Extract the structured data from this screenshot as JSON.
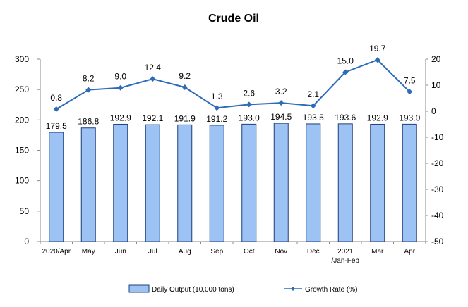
{
  "chart_data": {
    "type": "bar",
    "title": "Crude Oil",
    "categories": [
      [
        "2020/Apr"
      ],
      [
        "May"
      ],
      [
        "Jun"
      ],
      [
        "Jul"
      ],
      [
        "Aug"
      ],
      [
        "Sep"
      ],
      [
        "Oct"
      ],
      [
        "Nov"
      ],
      [
        "Dec"
      ],
      [
        "2021",
        "/Jan-Feb"
      ],
      [
        "Mar"
      ],
      [
        "Apr"
      ]
    ],
    "series": [
      {
        "name": "Daily Output (10,000 tons)",
        "type": "bar",
        "axis": "left",
        "color": "#9dc3f5",
        "values": [
          179.5,
          186.8,
          192.9,
          192.1,
          191.9,
          191.2,
          193.0,
          194.5,
          193.5,
          193.6,
          192.9,
          193.0
        ],
        "labels": [
          "179.5",
          "186.8",
          "192.9",
          "192.1",
          "191.9",
          "191.2",
          "193.0",
          "194.5",
          "193.5",
          "193.6",
          "192.9",
          "193.0"
        ]
      },
      {
        "name": "Growth Rate (%)",
        "type": "line",
        "axis": "right",
        "color": "#2e6bb8",
        "values": [
          0.8,
          8.2,
          9.0,
          12.4,
          9.2,
          1.3,
          2.6,
          3.2,
          2.1,
          15.0,
          19.7,
          7.5
        ],
        "labels": [
          "0.8",
          "8.2",
          "9.0",
          "12.4",
          "9.2",
          "1.3",
          "2.6",
          "3.2",
          "2.1",
          "15.0",
          "19.7",
          "7.5"
        ]
      }
    ],
    "y_left": {
      "min": 0,
      "max": 300,
      "step": 50,
      "ticks": [
        "0",
        "50",
        "100",
        "150",
        "200",
        "250",
        "300"
      ]
    },
    "y_right": {
      "min": -50,
      "max": 20,
      "step": 10,
      "ticks": [
        "-50",
        "-40",
        "-30",
        "-20",
        "-10",
        "0",
        "10",
        "20"
      ]
    },
    "grid": false,
    "legend": "bottom"
  }
}
